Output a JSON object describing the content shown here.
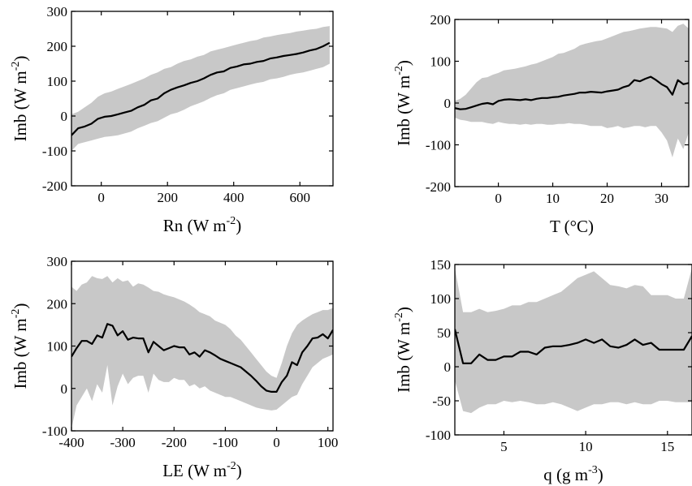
{
  "colors": {
    "band": "#c8c8c8",
    "line": "#000000",
    "frame": "#000000"
  },
  "chart_data": [
    {
      "type": "line",
      "id": "rn",
      "xlabel": {
        "base": "Rn (W m",
        "sup": "-2",
        "close": ")"
      },
      "ylabel": {
        "base": "Imb (W m",
        "sup": "-2",
        "close": ")"
      },
      "xlim": [
        -90,
        700
      ],
      "ylim": [
        -200,
        300
      ],
      "xticks": [
        0,
        200,
        400,
        600
      ],
      "xtick_labels": [
        "0",
        "200",
        "400",
        "600"
      ],
      "yticks": [
        -200,
        -100,
        0,
        100,
        200,
        300
      ],
      "ytick_labels": [
        "-200",
        "-100",
        "0",
        "100",
        "200",
        "300"
      ],
      "x": [
        -90,
        -70,
        -50,
        -30,
        -10,
        10,
        30,
        50,
        70,
        90,
        110,
        130,
        150,
        170,
        190,
        210,
        230,
        250,
        270,
        290,
        310,
        330,
        350,
        370,
        390,
        410,
        430,
        450,
        470,
        490,
        510,
        530,
        550,
        570,
        590,
        610,
        630,
        650,
        670,
        690
      ],
      "y": [
        -55,
        -35,
        -30,
        -22,
        -8,
        -2,
        0,
        5,
        10,
        15,
        25,
        32,
        45,
        50,
        65,
        75,
        82,
        88,
        95,
        100,
        108,
        118,
        125,
        128,
        138,
        142,
        148,
        150,
        155,
        158,
        165,
        168,
        172,
        175,
        178,
        182,
        188,
        192,
        200,
        210
      ],
      "band_upper": [
        5,
        12,
        25,
        38,
        55,
        65,
        70,
        78,
        85,
        92,
        100,
        108,
        118,
        125,
        135,
        140,
        150,
        158,
        162,
        170,
        175,
        185,
        190,
        195,
        200,
        205,
        210,
        215,
        218,
        225,
        228,
        232,
        235,
        238,
        242,
        245,
        248,
        250,
        255,
        258
      ],
      "band_lower": [
        -100,
        -80,
        -75,
        -70,
        -65,
        -60,
        -58,
        -55,
        -50,
        -45,
        -35,
        -28,
        -20,
        -15,
        -5,
        5,
        10,
        18,
        28,
        35,
        42,
        52,
        60,
        65,
        75,
        80,
        85,
        90,
        95,
        98,
        105,
        108,
        112,
        118,
        122,
        125,
        130,
        135,
        140,
        150
      ]
    },
    {
      "type": "line",
      "id": "t",
      "xlabel": {
        "base": "T (°C)",
        "sup": "",
        "close": ""
      },
      "ylabel": {
        "base": "Imb (W m",
        "sup": "-2",
        "close": ")"
      },
      "xlim": [
        -8,
        35
      ],
      "ylim": [
        -200,
        200
      ],
      "xticks": [
        0,
        10,
        20,
        30
      ],
      "xtick_labels": [
        "0",
        "10",
        "20",
        "30"
      ],
      "yticks": [
        -200,
        -100,
        0,
        100,
        200
      ],
      "ytick_labels": [
        "-200",
        "-100",
        "0",
        "100",
        "200"
      ],
      "x": [
        -8,
        -7,
        -6,
        -5,
        -4,
        -3,
        -2,
        -1,
        0,
        1,
        2,
        3,
        4,
        5,
        6,
        7,
        8,
        9,
        10,
        11,
        12,
        13,
        14,
        15,
        16,
        17,
        18,
        19,
        20,
        21,
        22,
        23,
        24,
        25,
        26,
        27,
        28,
        29,
        30,
        31,
        32,
        33,
        34,
        35
      ],
      "y": [
        -12,
        -15,
        -14,
        -10,
        -6,
        -2,
        0,
        -3,
        5,
        8,
        9,
        8,
        7,
        9,
        7,
        10,
        12,
        12,
        14,
        15,
        18,
        20,
        22,
        25,
        25,
        27,
        26,
        25,
        28,
        30,
        32,
        38,
        42,
        55,
        52,
        58,
        63,
        55,
        45,
        38,
        20,
        55,
        45,
        48
      ],
      "band_upper": [
        5,
        10,
        20,
        35,
        50,
        60,
        62,
        68,
        72,
        78,
        80,
        82,
        85,
        88,
        92,
        95,
        100,
        105,
        110,
        118,
        120,
        125,
        130,
        138,
        142,
        145,
        148,
        150,
        155,
        160,
        165,
        170,
        172,
        175,
        178,
        180,
        182,
        182,
        180,
        178,
        170,
        185,
        190,
        178
      ],
      "band_lower": [
        -35,
        -40,
        -42,
        -45,
        -45,
        -45,
        -48,
        -50,
        -45,
        -48,
        -50,
        -50,
        -52,
        -50,
        -52,
        -50,
        -50,
        -52,
        -52,
        -50,
        -50,
        -48,
        -50,
        -50,
        -52,
        -55,
        -55,
        -55,
        -60,
        -58,
        -55,
        -60,
        -58,
        -55,
        -55,
        -58,
        -55,
        -55,
        -70,
        -90,
        -130,
        -85,
        -110,
        -70
      ]
    },
    {
      "type": "line",
      "id": "le",
      "xlabel": {
        "base": "LE (W m",
        "sup": "-2",
        "close": ")"
      },
      "ylabel": {
        "base": "Imb (W m",
        "sup": "-2",
        "close": ")"
      },
      "xlim": [
        -400,
        110
      ],
      "ylim": [
        -100,
        300
      ],
      "xticks": [
        -400,
        -300,
        -200,
        -100,
        0,
        100
      ],
      "xtick_labels": [
        "-400",
        "-300",
        "-200",
        "-100",
        "0",
        "100"
      ],
      "yticks": [
        -100,
        0,
        100,
        200,
        300
      ],
      "ytick_labels": [
        "-100",
        "0",
        "100",
        "200",
        "300"
      ],
      "x": [
        -400,
        -390,
        -380,
        -370,
        -360,
        -350,
        -340,
        -330,
        -320,
        -310,
        -300,
        -290,
        -280,
        -270,
        -260,
        -250,
        -240,
        -230,
        -220,
        -210,
        -200,
        -190,
        -180,
        -170,
        -160,
        -150,
        -140,
        -130,
        -120,
        -110,
        -100,
        -90,
        -80,
        -70,
        -60,
        -50,
        -40,
        -30,
        -20,
        -10,
        0,
        10,
        20,
        30,
        40,
        50,
        60,
        70,
        80,
        90,
        100,
        110
      ],
      "y": [
        75,
        95,
        112,
        112,
        105,
        125,
        120,
        152,
        148,
        125,
        135,
        115,
        120,
        118,
        118,
        85,
        110,
        100,
        90,
        95,
        100,
        97,
        97,
        80,
        85,
        75,
        90,
        85,
        78,
        70,
        65,
        60,
        55,
        50,
        40,
        30,
        18,
        5,
        -5,
        -8,
        -8,
        15,
        30,
        62,
        55,
        85,
        100,
        118,
        120,
        128,
        118,
        138
      ],
      "band_upper": [
        240,
        230,
        245,
        250,
        265,
        260,
        258,
        265,
        250,
        260,
        252,
        255,
        240,
        248,
        245,
        238,
        230,
        228,
        222,
        218,
        215,
        210,
        205,
        198,
        190,
        180,
        175,
        170,
        160,
        155,
        150,
        140,
        125,
        115,
        100,
        85,
        70,
        55,
        40,
        30,
        25,
        60,
        100,
        130,
        150,
        160,
        168,
        175,
        180,
        185,
        185,
        190
      ],
      "band_lower": [
        -95,
        -40,
        -20,
        0,
        -30,
        10,
        -10,
        55,
        -40,
        5,
        35,
        10,
        25,
        30,
        30,
        -10,
        35,
        20,
        15,
        15,
        25,
        20,
        20,
        5,
        10,
        0,
        5,
        -5,
        -10,
        -15,
        -20,
        -20,
        -25,
        -30,
        -35,
        -40,
        -45,
        -48,
        -50,
        -52,
        -50,
        -40,
        -30,
        -20,
        -15,
        10,
        30,
        50,
        60,
        70,
        75,
        80
      ]
    },
    {
      "type": "line",
      "id": "q",
      "xlabel": {
        "base": "q (g m",
        "sup": "-3",
        "close": ")"
      },
      "ylabel": {
        "base": "Imb (W m",
        "sup": "-2",
        "close": ")"
      },
      "xlim": [
        2,
        16.5
      ],
      "ylim": [
        -100,
        150
      ],
      "xticks": [
        5,
        10,
        15
      ],
      "xtick_labels": [
        "5",
        "10",
        "15"
      ],
      "yticks": [
        -100,
        -50,
        0,
        50,
        100,
        150
      ],
      "ytick_labels": [
        "-100",
        "-50",
        "0",
        "50",
        "100",
        "150"
      ],
      "x": [
        2,
        2.5,
        3,
        3.5,
        4,
        4.5,
        5,
        5.5,
        6,
        6.5,
        7,
        7.5,
        8,
        8.5,
        9,
        9.5,
        10,
        10.5,
        11,
        11.5,
        12,
        12.5,
        13,
        13.5,
        14,
        14.5,
        15,
        15.5,
        16,
        16.5
      ],
      "y": [
        55,
        5,
        5,
        18,
        10,
        10,
        15,
        15,
        22,
        22,
        18,
        28,
        30,
        30,
        32,
        35,
        40,
        35,
        40,
        30,
        28,
        32,
        40,
        32,
        35,
        25,
        25,
        25,
        25,
        45
      ],
      "band_upper": [
        145,
        80,
        80,
        85,
        80,
        82,
        85,
        90,
        90,
        95,
        95,
        100,
        105,
        110,
        120,
        130,
        135,
        140,
        130,
        120,
        118,
        115,
        120,
        118,
        105,
        105,
        105,
        100,
        100,
        145
      ],
      "band_lower": [
        -20,
        -65,
        -68,
        -60,
        -55,
        -55,
        -50,
        -52,
        -50,
        -52,
        -55,
        -55,
        -52,
        -55,
        -60,
        -65,
        -60,
        -55,
        -55,
        -52,
        -52,
        -55,
        -52,
        -55,
        -55,
        -50,
        -50,
        -52,
        -52,
        -52
      ]
    }
  ]
}
